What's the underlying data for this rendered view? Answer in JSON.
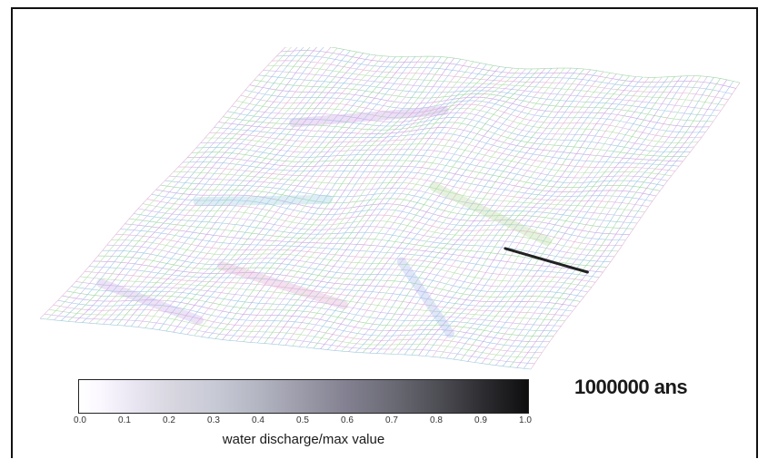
{
  "timestamp": "1000000 ans",
  "colorbar": {
    "label": "water discharge/max value",
    "ticks": [
      "0.0",
      "0.1",
      "0.2",
      "0.3",
      "0.4",
      "0.5",
      "0.6",
      "0.7",
      "0.8",
      "0.9",
      "1.0"
    ],
    "range": [
      0.0,
      1.0
    ],
    "colors": {
      "low": "#ffffff",
      "high": "#0e0e0f"
    }
  },
  "surface": {
    "description_icon": "wireframe-terrain-mesh"
  }
}
